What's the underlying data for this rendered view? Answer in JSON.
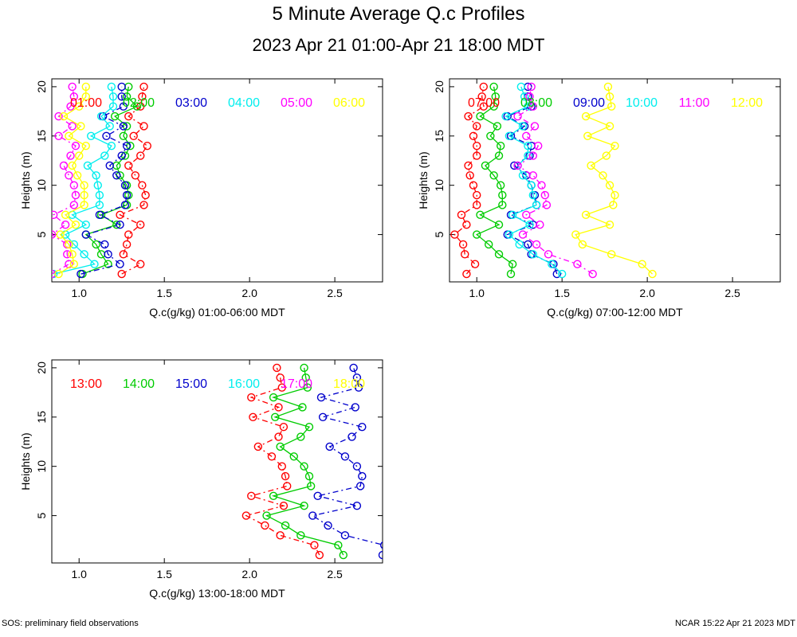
{
  "title": "5 Minute Average Q.c Profiles",
  "subtitle": "2023 Apr 21 01:00-Apr 21 18:00 MDT",
  "footer_left": "SOS: preliminary field observations",
  "footer_right": "NCAR 15:22 Apr 21 2023 MDT",
  "colors": [
    "#ff0000",
    "#00cc00",
    "#0000cc",
    "#00eeee",
    "#ff00ff",
    "#ffff00"
  ],
  "chart_data": [
    {
      "type": "line",
      "xlabel": "Q.c(g/kg) 01:00-06:00 MDT",
      "ylabel": "Heights (m)",
      "xlim": [
        0.84,
        2.78
      ],
      "ylim": [
        0.2,
        20.8
      ],
      "xticks": [
        "1.0",
        "1.5",
        "2.0",
        "2.5"
      ],
      "yticks": [
        "5",
        "10",
        "15",
        "20"
      ],
      "heights": [
        1,
        2,
        3,
        4,
        5,
        6,
        7,
        8,
        9,
        10,
        11,
        12,
        13,
        14,
        15,
        16,
        17,
        18,
        19,
        20
      ],
      "series": [
        {
          "name": "01:00",
          "values": [
            1.25,
            1.36,
            1.26,
            1.28,
            1.29,
            1.36,
            1.24,
            1.38,
            1.39,
            1.37,
            1.33,
            1.29,
            1.36,
            1.4,
            1.32,
            1.38,
            1.29,
            1.36,
            1.37,
            1.38
          ]
        },
        {
          "name": "02:00",
          "values": [
            1.02,
            1.17,
            1.13,
            1.1,
            1.04,
            1.22,
            1.13,
            1.28,
            1.29,
            1.28,
            1.24,
            1.22,
            1.27,
            1.3,
            1.26,
            1.28,
            1.21,
            1.34,
            1.28,
            1.29
          ]
        },
        {
          "name": "03:00",
          "values": [
            1.01,
            1.24,
            1.17,
            1.15,
            1.04,
            1.24,
            1.12,
            1.27,
            1.28,
            1.27,
            1.22,
            1.18,
            1.25,
            1.28,
            1.16,
            1.26,
            1.14,
            1.26,
            1.25,
            1.25
          ]
        },
        {
          "name": "04:00",
          "values": [
            0.85,
            1.09,
            1.03,
            0.97,
            0.92,
            1.04,
            0.96,
            1.12,
            1.12,
            1.11,
            1.1,
            1.05,
            1.15,
            1.19,
            1.07,
            1.18,
            1.13,
            1.2,
            1.2,
            1.19
          ]
        },
        {
          "name": "05:00",
          "values": [
            0.84,
            0.94,
            0.93,
            0.93,
            0.84,
            0.92,
            0.85,
            0.97,
            0.98,
            0.97,
            0.94,
            0.91,
            0.95,
            0.98,
            0.88,
            0.96,
            0.88,
            0.95,
            0.97,
            0.96
          ]
        },
        {
          "name": "06:00",
          "values": [
            0.88,
            0.97,
            0.96,
            0.94,
            0.89,
            0.98,
            0.92,
            1.03,
            1.03,
            1.03,
            0.99,
            0.96,
            1.0,
            1.04,
            0.94,
            1.01,
            0.91,
            1.0,
            1.04,
            1.04
          ]
        }
      ]
    },
    {
      "type": "line",
      "xlabel": "Q.c(g/kg) 07:00-12:00 MDT",
      "ylabel": "Heights (m)",
      "xlim": [
        0.84,
        2.78
      ],
      "ylim": [
        0.2,
        20.8
      ],
      "xticks": [
        "1.0",
        "1.5",
        "2.0",
        "2.5"
      ],
      "yticks": [
        "5",
        "10",
        "15",
        "20"
      ],
      "heights": [
        1,
        2,
        3,
        4,
        5,
        6,
        7,
        8,
        9,
        10,
        11,
        12,
        13,
        14,
        15,
        16,
        17,
        18,
        19,
        20
      ],
      "series": [
        {
          "name": "07:00",
          "values": [
            0.94,
            0.99,
            0.93,
            0.92,
            0.87,
            0.94,
            0.91,
            1.0,
            1.0,
            0.98,
            0.96,
            0.95,
            1.0,
            1.0,
            0.98,
            1.0,
            0.95,
            1.04,
            1.03,
            1.04
          ]
        },
        {
          "name": "08:00",
          "values": [
            1.2,
            1.21,
            1.13,
            1.07,
            1.0,
            1.13,
            1.02,
            1.15,
            1.15,
            1.14,
            1.1,
            1.05,
            1.13,
            1.14,
            1.08,
            1.12,
            1.02,
            1.1,
            1.11,
            1.1
          ]
        },
        {
          "name": "09:00",
          "values": [
            1.47,
            1.45,
            1.32,
            1.3,
            1.18,
            1.33,
            1.2,
            1.35,
            1.34,
            1.32,
            1.29,
            1.22,
            1.31,
            1.32,
            1.2,
            1.28,
            1.18,
            1.32,
            1.3,
            1.3
          ]
        },
        {
          "name": "10:00",
          "values": [
            1.5,
            1.44,
            1.33,
            1.25,
            1.19,
            1.31,
            1.21,
            1.35,
            1.33,
            1.32,
            1.27,
            1.24,
            1.3,
            1.3,
            1.19,
            1.27,
            1.17,
            1.3,
            1.28,
            1.26
          ]
        },
        {
          "name": "11:00",
          "values": [
            1.68,
            1.59,
            1.42,
            1.35,
            1.27,
            1.37,
            1.29,
            1.41,
            1.4,
            1.38,
            1.33,
            1.24,
            1.33,
            1.36,
            1.29,
            1.34,
            1.24,
            1.33,
            1.31,
            1.32
          ]
        },
        {
          "name": "12:00",
          "values": [
            2.03,
            1.97,
            1.79,
            1.62,
            1.58,
            1.78,
            1.64,
            1.8,
            1.81,
            1.78,
            1.74,
            1.67,
            1.76,
            1.81,
            1.65,
            1.78,
            1.64,
            1.79,
            1.78,
            1.77
          ]
        }
      ]
    },
    {
      "type": "line",
      "xlabel": "Q.c(g/kg) 13:00-18:00 MDT",
      "ylabel": "Heights (m)",
      "xlim": [
        0.84,
        2.78
      ],
      "ylim": [
        0.2,
        20.8
      ],
      "xticks": [
        "1.0",
        "1.5",
        "2.0",
        "2.5"
      ],
      "yticks": [
        "5",
        "10",
        "15",
        "20"
      ],
      "heights": [
        1,
        2,
        3,
        4,
        5,
        6,
        7,
        8,
        9,
        10,
        11,
        12,
        13,
        14,
        15,
        16,
        17,
        18,
        19,
        20
      ],
      "series": [
        {
          "name": "13:00",
          "values": [
            2.41,
            2.38,
            2.18,
            2.09,
            1.98,
            2.2,
            2.01,
            2.22,
            2.21,
            2.19,
            2.13,
            2.05,
            2.17,
            2.2,
            2.02,
            2.17,
            2.01,
            2.19,
            2.18,
            2.16
          ]
        },
        {
          "name": "14:00",
          "values": [
            2.55,
            2.52,
            2.3,
            2.21,
            2.1,
            2.32,
            2.14,
            2.36,
            2.35,
            2.32,
            2.26,
            2.18,
            2.3,
            2.35,
            2.15,
            2.31,
            2.14,
            2.34,
            2.33,
            2.32
          ]
        },
        {
          "name": "15:00",
          "values": [
            2.78,
            2.79,
            2.56,
            2.46,
            2.37,
            2.63,
            2.4,
            2.65,
            2.66,
            2.63,
            2.56,
            2.47,
            2.6,
            2.66,
            2.43,
            2.62,
            2.42,
            2.64,
            2.63,
            2.61
          ]
        },
        {
          "name": "16:00",
          "values": [],
          "empty": true
        },
        {
          "name": "17:00",
          "values": [],
          "empty": true
        },
        {
          "name": "18:00",
          "values": [],
          "empty": true
        }
      ]
    }
  ]
}
